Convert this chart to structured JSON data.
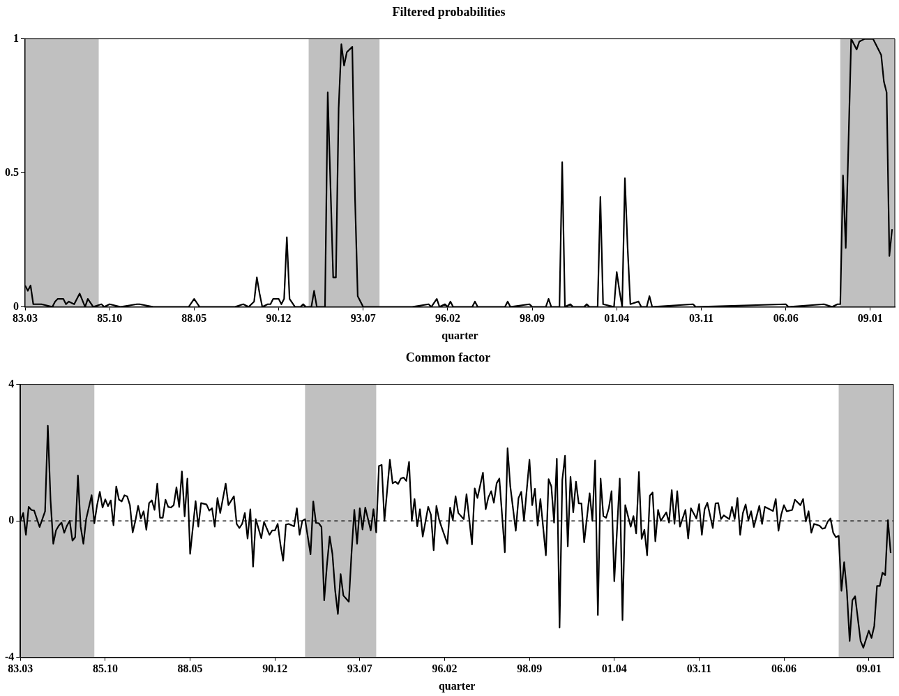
{
  "chart_data": [
    {
      "type": "line",
      "title": "Filtered probabilities",
      "xlabel": "quarter",
      "xlim": [
        "1983-03",
        "2009-10"
      ],
      "xticks": [
        {
          "value": "1983-03",
          "label": "83.03"
        },
        {
          "value": "1985-10",
          "label": "85.10"
        },
        {
          "value": "1988-05",
          "label": "88.05"
        },
        {
          "value": "1990-12",
          "label": "90.12"
        },
        {
          "value": "1993-07",
          "label": "93.07"
        },
        {
          "value": "1996-02",
          "label": "96.02"
        },
        {
          "value": "1998-09",
          "label": "98.09"
        },
        {
          "value": "2001-04",
          "label": "01.04"
        },
        {
          "value": "2003-11",
          "label": "03.11"
        },
        {
          "value": "2006-06",
          "label": "06.06"
        },
        {
          "value": "2009-01",
          "label": "09.01"
        }
      ],
      "ylim": [
        0,
        1
      ],
      "yticks": [
        0,
        0.5,
        1
      ],
      "bands": [
        {
          "axis": "x",
          "from": "1983-03",
          "to": "1985-06",
          "color": "#c0c0c0"
        },
        {
          "axis": "x",
          "from": "1991-11",
          "to": "1994-01",
          "color": "#c0c0c0"
        },
        {
          "axis": "x",
          "from": "2008-02",
          "to": "2009-10",
          "color": "#c0c0c0"
        }
      ],
      "series": [
        {
          "color": "#000000",
          "x": [
            "1983-03",
            "1983-04",
            "1983-05",
            "1983-06",
            "1983-09",
            "1984-01",
            "1984-02",
            "1984-03",
            "1984-05",
            "1984-06",
            "1984-07",
            "1984-09",
            "1984-11",
            "1985-01",
            "1985-02",
            "1985-04",
            "1985-07",
            "1985-08",
            "1985-10",
            "1986-02",
            "1986-08",
            "1986-09",
            "1987-02",
            "1988-03",
            "1988-05",
            "1988-07",
            "1988-09",
            "1989-02",
            "1989-08",
            "1989-11",
            "1990-01",
            "1990-03",
            "1990-04",
            "1990-05",
            "1990-06",
            "1990-08",
            "1990-09",
            "1990-10",
            "1990-12",
            "1991-01",
            "1991-02",
            "1991-03",
            "1991-04",
            "1991-06",
            "1991-08",
            "1991-09",
            "1991-10",
            "1991-12",
            "1992-01",
            "1992-02",
            "1992-05",
            "1992-06",
            "1992-08",
            "1992-09",
            "1992-10",
            "1992-11",
            "1992-12",
            "1993-01",
            "1993-03",
            "1993-04",
            "1993-05",
            "1993-07",
            "1994-01",
            "1995-01",
            "1995-07",
            "1995-08",
            "1995-10",
            "1995-11",
            "1996-01",
            "1996-02",
            "1996-03",
            "1996-04",
            "1996-11",
            "1996-12",
            "1997-01",
            "1997-11",
            "1997-12",
            "1998-01",
            "1998-08",
            "1998-09",
            "1999-02",
            "1999-03",
            "1999-04",
            "1999-07",
            "1999-08",
            "1999-09",
            "1999-11",
            "1999-12",
            "2000-04",
            "2000-05",
            "2000-06",
            "2000-09",
            "2000-10",
            "2000-11",
            "2001-03",
            "2001-04",
            "2001-05",
            "2001-06",
            "2001-07",
            "2001-08",
            "2001-09",
            "2001-12",
            "2002-01",
            "2002-03",
            "2002-04",
            "2002-05",
            "2003-08",
            "2003-09",
            "2006-06",
            "2006-07",
            "2007-08",
            "2007-11",
            "2008-01",
            "2008-02",
            "2008-03",
            "2008-04",
            "2008-06",
            "2008-08",
            "2008-09",
            "2008-11",
            "2009-02",
            "2009-05",
            "2009-06",
            "2009-07",
            "2009-08",
            "2009-09"
          ],
          "values": [
            0.08,
            0.06,
            0.08,
            0.01,
            0.01,
            0,
            0.02,
            0.03,
            0.03,
            0.01,
            0.02,
            0.01,
            0.05,
            0,
            0.03,
            0,
            0.01,
            0,
            0.01,
            0,
            0.01,
            0.01,
            0,
            0,
            0.03,
            0,
            0,
            0,
            0,
            0.01,
            0,
            0.02,
            0.11,
            0.05,
            0,
            0.01,
            0.01,
            0.03,
            0.03,
            0.01,
            0.03,
            0.26,
            0.03,
            0,
            0,
            0.01,
            0,
            0,
            0.06,
            0,
            0,
            0.8,
            0.11,
            0.11,
            0.74,
            0.98,
            0.9,
            0.95,
            0.97,
            0.41,
            0.04,
            0,
            0,
            0,
            0.01,
            0,
            0.03,
            0,
            0.01,
            0,
            0.02,
            0,
            0,
            0.02,
            0,
            0,
            0.02,
            0,
            0.01,
            0,
            0,
            0.03,
            0,
            0,
            0.54,
            0,
            0.01,
            0,
            0,
            0.01,
            0,
            0,
            0.41,
            0.01,
            0,
            0.13,
            0.06,
            0,
            0.48,
            0.22,
            0.01,
            0.02,
            0,
            0,
            0.04,
            0,
            0.01,
            0,
            0.01,
            0,
            0.01,
            0,
            0.01,
            0.01,
            0.49,
            0.22,
            1,
            0.96,
            0.99,
            1,
            1,
            0.94,
            0.84,
            0.8,
            0.19,
            0.29
          ]
        }
      ]
    },
    {
      "type": "line",
      "title": "Common factor",
      "xlabel": "quarter",
      "xlim": [
        "1983-03",
        "2009-10"
      ],
      "xticks": [
        {
          "value": "1983-03",
          "label": "83.03"
        },
        {
          "value": "1985-10",
          "label": "85.10"
        },
        {
          "value": "1988-05",
          "label": "88.05"
        },
        {
          "value": "1990-12",
          "label": "90.12"
        },
        {
          "value": "1993-07",
          "label": "93.07"
        },
        {
          "value": "1996-02",
          "label": "96.02"
        },
        {
          "value": "1998-09",
          "label": "98.09"
        },
        {
          "value": "2001-04",
          "label": "01.04"
        },
        {
          "value": "2003-11",
          "label": "03.11"
        },
        {
          "value": "2006-06",
          "label": "06.06"
        },
        {
          "value": "2009-01",
          "label": "09.01"
        }
      ],
      "ylim": [
        -4,
        4
      ],
      "yticks": [
        -4,
        0,
        4
      ],
      "bands": [
        {
          "axis": "x",
          "from": "1983-03",
          "to": "1985-06",
          "color": "#c0c0c0"
        },
        {
          "axis": "x",
          "from": "1991-11",
          "to": "1994-01",
          "color": "#c0c0c0"
        },
        {
          "axis": "x",
          "from": "2008-02",
          "to": "2009-10",
          "color": "#c0c0c0"
        }
      ],
      "ref_lines": [
        {
          "axis": "y",
          "value": 0,
          "color": "#000000",
          "line_style": "dashed"
        }
      ],
      "series": [
        {
          "color": "#000000",
          "x": [
            "1983-03",
            "1983-04",
            "1983-05",
            "1983-06",
            "1983-07",
            "1983-08",
            "1983-10",
            "1983-12",
            "1984-01",
            "1984-02",
            "1984-03",
            "1984-04",
            "1984-05",
            "1984-06",
            "1984-07",
            "1984-08",
            "1984-09",
            "1984-10",
            "1984-11",
            "1984-12",
            "1985-01",
            "1985-02",
            "1985-03",
            "1985-05",
            "1985-06",
            "1985-07",
            "1985-08",
            "1985-09",
            "1985-10",
            "1985-11",
            "1985-12",
            "1986-01",
            "1986-02",
            "1986-03",
            "1986-04",
            "1986-05",
            "1986-06",
            "1986-07",
            "1986-08",
            "1986-09",
            "1986-10",
            "1986-11",
            "1986-12",
            "1987-01",
            "1987-02",
            "1987-03",
            "1987-04",
            "1987-05",
            "1987-06",
            "1987-07",
            "1987-08",
            "1987-09",
            "1987-10",
            "1987-11",
            "1987-12",
            "1988-01",
            "1988-02",
            "1988-03",
            "1988-04",
            "1988-05",
            "1988-07",
            "1988-08",
            "1988-09",
            "1988-11",
            "1988-12",
            "1989-01",
            "1989-02",
            "1989-03",
            "1989-04",
            "1989-06",
            "1989-07",
            "1989-09",
            "1989-10",
            "1989-11",
            "1989-12",
            "1990-01",
            "1990-02",
            "1990-03",
            "1990-04",
            "1990-05",
            "1990-07",
            "1990-08",
            "1990-10",
            "1990-11",
            "1990-12",
            "1991-01",
            "1991-02",
            "1991-03",
            "1991-04",
            "1991-05",
            "1991-07",
            "1991-08",
            "1991-09",
            "1991-10",
            "1991-11",
            "1992-01",
            "1992-02",
            "1992-03",
            "1992-04",
            "1992-05",
            "1992-06",
            "1992-07",
            "1992-08",
            "1992-09",
            "1992-10",
            "1992-11",
            "1992-12",
            "1993-01",
            "1993-02",
            "1993-03",
            "1993-04",
            "1993-05",
            "1993-06",
            "1993-07",
            "1993-08",
            "1993-09",
            "1993-11",
            "1993-12",
            "1994-01",
            "1994-02",
            "1994-03",
            "1994-04",
            "1994-06",
            "1994-07",
            "1994-08",
            "1994-09",
            "1994-10",
            "1994-11",
            "1994-12",
            "1995-01",
            "1995-02",
            "1995-03",
            "1995-04",
            "1995-05",
            "1995-06",
            "1995-08",
            "1995-09",
            "1995-10",
            "1995-11",
            "1995-12",
            "1996-01",
            "1996-03",
            "1996-04",
            "1996-05",
            "1996-06",
            "1996-07",
            "1996-09",
            "1996-10",
            "1996-12",
            "1997-01",
            "1997-02",
            "1997-04",
            "1997-05",
            "1997-06",
            "1997-07",
            "1997-08",
            "1997-09",
            "1997-10",
            "1997-12",
            "1998-01",
            "1998-02",
            "1998-04",
            "1998-05",
            "1998-06",
            "1998-07",
            "1998-09",
            "1998-10",
            "1998-11",
            "1998-12",
            "1999-01",
            "1999-03",
            "1999-04",
            "1999-05",
            "1999-06",
            "1999-07",
            "1999-08",
            "1999-09",
            "1999-10",
            "1999-11",
            "1999-12",
            "2000-01",
            "2000-02",
            "2000-03",
            "2000-04",
            "2000-05",
            "2000-07",
            "2000-08",
            "2000-09",
            "2000-10",
            "2000-11",
            "2000-12",
            "2001-01",
            "2001-02",
            "2001-03",
            "2001-04",
            "2001-06",
            "2001-07",
            "2001-08",
            "2001-10",
            "2001-11",
            "2001-12",
            "2002-01",
            "2002-02",
            "2002-03",
            "2002-04",
            "2002-05",
            "2002-06",
            "2002-07",
            "2002-08",
            "2002-09",
            "2002-11",
            "2002-12",
            "2003-01",
            "2003-02",
            "2003-03",
            "2003-04",
            "2003-06",
            "2003-07",
            "2003-08",
            "2003-10",
            "2003-11",
            "2003-12",
            "2004-01",
            "2004-02",
            "2004-04",
            "2004-05",
            "2004-06",
            "2004-07",
            "2004-08",
            "2004-10",
            "2004-11",
            "2004-12",
            "2005-01",
            "2005-02",
            "2005-03",
            "2005-04",
            "2005-05",
            "2005-06",
            "2005-07",
            "2005-09",
            "2005-10",
            "2005-11",
            "2006-02",
            "2006-03",
            "2006-04",
            "2006-05",
            "2006-06",
            "2006-07",
            "2006-09",
            "2006-10",
            "2006-12",
            "2007-01",
            "2007-02",
            "2007-03",
            "2007-04",
            "2007-05",
            "2007-07",
            "2007-08",
            "2007-09",
            "2007-10",
            "2007-11",
            "2007-12",
            "2008-01",
            "2008-02",
            "2008-03",
            "2008-04",
            "2008-05",
            "2008-06",
            "2008-07",
            "2008-08",
            "2008-10",
            "2008-11",
            "2009-01",
            "2009-02",
            "2009-03",
            "2009-04",
            "2009-05",
            "2009-06",
            "2009-07",
            "2009-08",
            "2009-09"
          ],
          "values": [
            0,
            0.23,
            -0.41,
            0.41,
            0.32,
            0.3,
            -0.18,
            0.28,
            2.79,
            0.6,
            -0.67,
            -0.28,
            -0.14,
            -0.05,
            -0.35,
            -0.14,
            0,
            -0.58,
            -0.48,
            1.33,
            -0.17,
            -0.67,
            0.05,
            0.75,
            -0.07,
            0.46,
            0.85,
            0.39,
            0.63,
            0.43,
            0.6,
            -0.13,
            1.01,
            0.62,
            0.57,
            0.75,
            0.72,
            0.46,
            -0.34,
            0,
            0.44,
            0.07,
            0.28,
            -0.26,
            0.52,
            0.6,
            0.32,
            1.09,
            0.09,
            0.09,
            0.62,
            0.41,
            0.39,
            0.46,
            0.98,
            0.41,
            1.45,
            0.13,
            1.24,
            -0.97,
            0.58,
            -0.17,
            0.52,
            0.48,
            0.3,
            0.37,
            -0.17,
            0.67,
            0.23,
            1.09,
            0.46,
            0.72,
            -0.09,
            -0.21,
            -0.09,
            0.23,
            -0.52,
            0.34,
            -1.34,
            0.05,
            -0.51,
            -0.03,
            -0.41,
            -0.28,
            -0.28,
            -0.09,
            -0.69,
            -1.17,
            -0.11,
            -0.09,
            -0.16,
            0.37,
            -0.41,
            0,
            0.05,
            -0.98,
            0.57,
            -0.06,
            -0.07,
            -0.18,
            -2.33,
            -1.29,
            -0.46,
            -0.97,
            -2.04,
            -2.73,
            -1.56,
            -2.19,
            -2.28,
            -2.37,
            -0.92,
            0.32,
            -0.67,
            0.37,
            -0.25,
            0.39,
            -0.28,
            0.34,
            -0.34,
            1.61,
            1.64,
            0,
            1.79,
            1.1,
            1.15,
            1.08,
            1.24,
            1.27,
            1.17,
            1.73,
            0,
            0.64,
            -0.16,
            0.34,
            -0.46,
            0.41,
            0.18,
            -0.86,
            0.44,
            0.03,
            -0.21,
            -0.67,
            0.39,
            0.02,
            0.72,
            0.23,
            0.05,
            0.78,
            -0.69,
            0.95,
            0.67,
            1.41,
            0.34,
            0.69,
            0.87,
            0.53,
            1.1,
            1.24,
            -0.92,
            2.13,
            1.01,
            -0.29,
            0.67,
            0.85,
            0,
            1.79,
            0.46,
            0.94,
            -0.14,
            0.64,
            -1.01,
            1.22,
            1.01,
            -0.05,
            1.82,
            -3.13,
            1.2,
            1.91,
            -0.75,
            1.29,
            0.25,
            1.15,
            0.51,
            0.51,
            -0.63,
            0.81,
            0,
            1.77,
            -2.76,
            1.24,
            0.14,
            0.09,
            0.37,
            0.87,
            -1.77,
            1.24,
            -2.91,
            0.46,
            -0.17,
            0.14,
            -0.37,
            1.43,
            -0.53,
            -0.26,
            -1.01,
            0.74,
            0.83,
            -0.6,
            0.32,
            0,
            0.25,
            -0.05,
            0.9,
            -0.09,
            0.87,
            -0.17,
            0.32,
            -0.52,
            0.37,
            0.07,
            0.49,
            -0.41,
            0.34,
            0.53,
            -0.21,
            0.51,
            0.52,
            0.05,
            0.16,
            0.05,
            0.41,
            0.05,
            0.67,
            -0.41,
            0.23,
            0.48,
            0.02,
            0.28,
            -0.18,
            0.44,
            -0.09,
            0.41,
            0.29,
            0.64,
            -0.29,
            0.18,
            0.46,
            0.28,
            0.32,
            0.62,
            0.46,
            0.64,
            -0.02,
            0.28,
            -0.35,
            -0.09,
            -0.14,
            -0.23,
            -0.21,
            -0.02,
            0.07,
            -0.35,
            -0.48,
            -0.44,
            -2.05,
            -1.21,
            -2.07,
            -3.52,
            -2.33,
            -2.21,
            -3.52,
            -3.72,
            -3.22,
            -3.43,
            -3.08,
            -1.91,
            -1.91,
            -1.52,
            -1.59,
            0.02,
            -0.94
          ]
        }
      ]
    }
  ]
}
